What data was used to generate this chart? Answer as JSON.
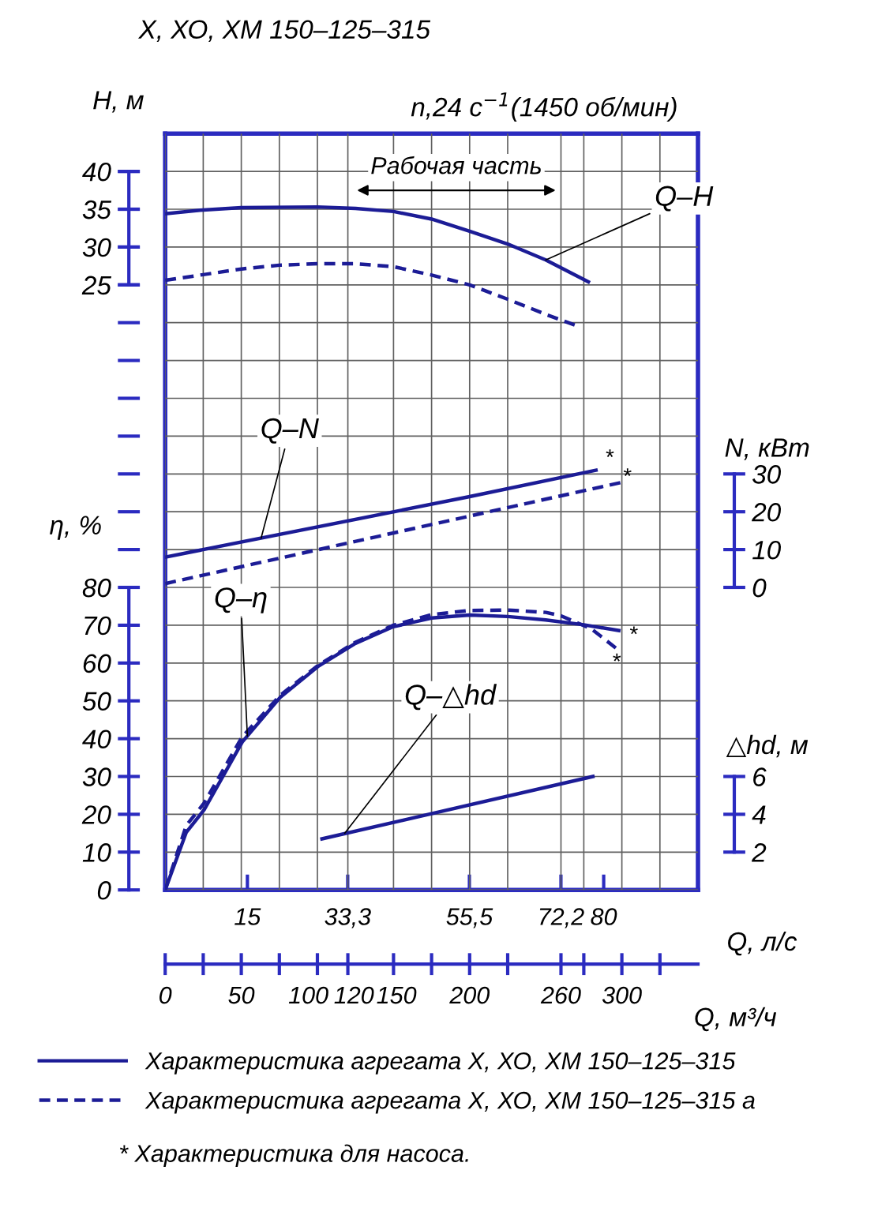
{
  "chart_data": [
    {
      "type": "line",
      "title": "Х, ХО, ХМ 150–125–315",
      "subtitle": "n,24 с$^{−1}$(1450 об/мин)",
      "xlabel": "Q, м³/ч",
      "x2label": "Q, л/с",
      "ylabel": "η, %",
      "xlim": [
        0,
        350
      ],
      "xticks": [
        0,
        {
          "value": 25,
          "label": null
        },
        50,
        {
          "value": 75,
          "label": null
        },
        100,
        120,
        150,
        {
          "value": 175,
          "label": null
        },
        200,
        {
          "value": 225,
          "label": null
        },
        260,
        {
          "value": 275,
          "label": null
        },
        300,
        {
          "value": 325,
          "label": null
        }
      ],
      "x2lim": [
        0,
        97.2
      ],
      "x2ticks": [
        15,
        {
          "value": 33.3,
          "label": "33,3"
        },
        {
          "value": 55.5,
          "label": "55,5"
        },
        {
          "value": 72.2,
          "label": "72,2"
        },
        80
      ],
      "ylim": [
        0,
        200
      ],
      "yticks": [
        0,
        10,
        20,
        30,
        40,
        50,
        60,
        70,
        80,
        {
          "value": 90,
          "label": null
        },
        {
          "value": 100,
          "label": null
        },
        {
          "value": 110,
          "label": null
        },
        {
          "value": 120,
          "label": null
        },
        {
          "value": 130,
          "label": null
        },
        {
          "value": 140,
          "label": null
        },
        {
          "value": 150,
          "label": null
        },
        {
          "value": 160,
          "label": null
        },
        {
          "value": 170,
          "label": null
        },
        {
          "value": 180,
          "label": null
        },
        {
          "value": 190,
          "label": null
        }
      ],
      "grid": true,
      "legend": "bottom",
      "marker": "none",
      "series": [
        {
          "name": "Характеристика агрегата Х, ХО, ХМ 150–125–315",
          "color": "#1c1c96",
          "line_style": "solid",
          "x": [
            0,
            13.8,
            25.6,
            50.6,
            75.7,
            100.8,
            125,
            149.8,
            175,
            200,
            225,
            250,
            275,
            298
          ],
          "values": [
            0,
            15.2,
            21.2,
            39.1,
            51,
            59.2,
            65.2,
            69.6,
            71.9,
            72.7,
            72.3,
            71.4,
            70.1,
            68.6
          ]
        },
        {
          "name": "Характеристика агрегата Х, ХО, ХМ 150–125–315 а",
          "color": "#1c1c96",
          "line_style": "dashed",
          "x": [
            0,
            13.8,
            25.6,
            50.6,
            75.7,
            100.8,
            125,
            150,
            175,
            200,
            225,
            250,
            260,
            280,
            296
          ],
          "values": [
            0,
            17,
            23,
            40.5,
            51.5,
            59.5,
            65.5,
            70,
            72.8,
            73.9,
            74,
            73.4,
            72.5,
            69,
            64
          ]
        }
      ],
      "annotations": [
        {
          "text": "Q–η",
          "x": 54,
          "y": 40.7
        },
        "*",
        "*",
        "* Характеристика для насоса."
      ]
    },
    {
      "type": "line",
      "ylabel": "H, м",
      "xlim": [
        0,
        350
      ],
      "tick_labels": "y",
      "ylim": [
        -55,
        45
      ],
      "yticks": [
        25,
        30,
        35,
        40
      ],
      "marker": "none",
      "series": [
        {
          "color": "#1c1c96",
          "line_style": "solid",
          "x": [
            0,
            25,
            50,
            100,
            125,
            150,
            175,
            200,
            225,
            250,
            278
          ],
          "values": [
            34.4,
            34.9,
            35.2,
            35.3,
            35.1,
            34.7,
            33.7,
            32.1,
            30.4,
            28.3,
            25.4
          ]
        },
        {
          "color": "#1c1c96",
          "line_style": "dashed",
          "x": [
            0,
            50,
            75,
            100,
            125,
            150,
            175,
            200,
            225,
            250,
            269
          ],
          "values": [
            25.6,
            27.1,
            27.6,
            27.8,
            27.8,
            27.4,
            26.3,
            25.0,
            23.1,
            21.1,
            19.7
          ]
        }
      ],
      "annotations": [
        {
          "text": "Q–H",
          "x": 250,
          "y": 28.3
        },
        "Рабочая часть"
      ]
    },
    {
      "type": "line",
      "ylabel": "N, кВт",
      "xlim": [
        0,
        350
      ],
      "tick_labels": "y",
      "ylim": [
        -80,
        120
      ],
      "yticks": [
        0,
        10,
        20,
        30
      ],
      "marker": "none",
      "series": [
        {
          "color": "#1c1c96",
          "line_style": "solid",
          "x": [
            0,
            200,
            283
          ],
          "values": [
            8,
            24,
            31
          ]
        },
        {
          "color": "#1c1c96",
          "line_style": "dashed",
          "x": [
            0,
            299
          ],
          "values": [
            1,
            27.7
          ]
        }
      ],
      "annotations": [
        {
          "text": "Q–N",
          "x": 63,
          "y": 13
        },
        "*",
        "*"
      ]
    },
    {
      "type": "line",
      "ylabel": "△hd, м",
      "xlim": [
        0,
        350
      ],
      "tick_labels": "y",
      "ylim": [
        0,
        40
      ],
      "yticks": [
        2,
        4,
        6
      ],
      "marker": "none",
      "series": [
        {
          "color": "#1c1c96",
          "line_style": "solid",
          "x": [
            103,
            281
          ],
          "values": [
            2.7,
            6.0
          ]
        }
      ],
      "annotations": [
        {
          "text": "Q–△hd",
          "x": 118,
          "y": 3.0
        }
      ]
    }
  ]
}
